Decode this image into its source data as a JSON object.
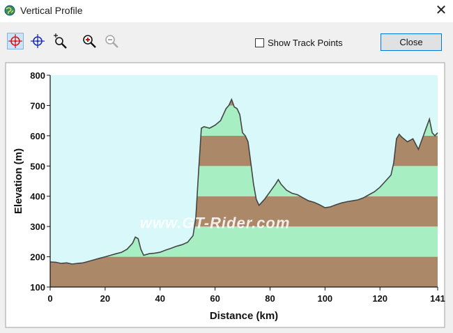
{
  "window": {
    "title": "Vertical Profile",
    "app_icon": "globe-icon",
    "close_glyph": "✕"
  },
  "toolbar": {
    "tools": [
      {
        "icon": "crosshair-red-icon",
        "active": true
      },
      {
        "icon": "crosshair-blue-icon",
        "active": false
      },
      {
        "icon": "zoom-box-icon",
        "active": false
      },
      {
        "icon": "zoom-in-icon",
        "active": false
      },
      {
        "icon": "zoom-out-icon",
        "active": false,
        "disabled": true
      }
    ],
    "show_track_points_label": "Show Track Points",
    "show_track_points_checked": false,
    "close_label": "Close"
  },
  "colors": {
    "sky": "#d9f8fa",
    "band_green": "#a7eec3",
    "band_brown": "#ab8968",
    "profile_line": "#444444",
    "chrome_bg": "#f0f0f0",
    "focus_blue": "#0078d7"
  },
  "chart_data": {
    "type": "area",
    "title": "",
    "xlabel": "Distance  (km)",
    "ylabel": "Elevation (m)",
    "xlim": [
      0,
      141
    ],
    "ylim": [
      100,
      800
    ],
    "x_ticks": [
      0,
      20,
      40,
      60,
      80,
      100,
      120,
      141
    ],
    "y_ticks": [
      100,
      200,
      300,
      400,
      500,
      600,
      700,
      800
    ],
    "bands": [
      {
        "from": 100,
        "to": 200,
        "color": "brown"
      },
      {
        "from": 200,
        "to": 300,
        "color": "green"
      },
      {
        "from": 300,
        "to": 400,
        "color": "brown"
      },
      {
        "from": 400,
        "to": 500,
        "color": "green"
      },
      {
        "from": 500,
        "to": 600,
        "color": "brown"
      },
      {
        "from": 600,
        "to": 700,
        "color": "green"
      },
      {
        "from": 700,
        "to": 800,
        "color": "brown"
      }
    ],
    "watermark": "www.GT-Rider.com",
    "grid": false,
    "series": [
      {
        "x": [
          0,
          2,
          4,
          6,
          8,
          10,
          12,
          14,
          16,
          18,
          20,
          22,
          24,
          26,
          28,
          30,
          31,
          32,
          33,
          34,
          36,
          38,
          40,
          42,
          44,
          46,
          48,
          50,
          52,
          53,
          54,
          55,
          56,
          58,
          60,
          62,
          64,
          65,
          66,
          67,
          68,
          69,
          70,
          71,
          72,
          73,
          74,
          75,
          76,
          78,
          80,
          82,
          83,
          84,
          86,
          88,
          90,
          92,
          94,
          96,
          98,
          100,
          102,
          104,
          106,
          108,
          110,
          112,
          114,
          116,
          118,
          120,
          122,
          124,
          125,
          126,
          127,
          128,
          130,
          132,
          134,
          135,
          136,
          137,
          138,
          139,
          140,
          141
        ],
        "y": [
          183,
          182,
          178,
          180,
          176,
          178,
          180,
          185,
          190,
          195,
          200,
          205,
          210,
          215,
          225,
          245,
          265,
          260,
          225,
          205,
          210,
          212,
          215,
          222,
          228,
          235,
          240,
          248,
          270,
          330,
          480,
          625,
          630,
          625,
          635,
          650,
          690,
          700,
          720,
          695,
          690,
          670,
          610,
          600,
          580,
          510,
          440,
          390,
          370,
          390,
          415,
          440,
          455,
          440,
          420,
          410,
          405,
          395,
          385,
          380,
          372,
          362,
          365,
          372,
          378,
          382,
          385,
          388,
          395,
          405,
          415,
          430,
          450,
          470,
          510,
          590,
          605,
          595,
          580,
          590,
          555,
          580,
          605,
          630,
          655,
          610,
          600,
          610
        ]
      }
    ]
  }
}
